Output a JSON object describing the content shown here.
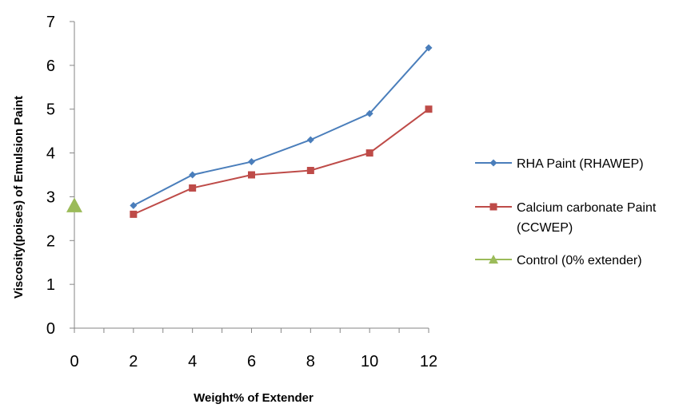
{
  "chart_data": {
    "type": "line",
    "title": "",
    "xlabel": "Weight% of Extender",
    "ylabel": "Viscosity(poises) of Emulsion Paint",
    "xlim": [
      0,
      12
    ],
    "ylim": [
      0,
      7
    ],
    "x_ticks": [
      "0",
      "2",
      "4",
      "6",
      "8",
      "10",
      "12"
    ],
    "y_ticks": [
      "0",
      "1",
      "2",
      "3",
      "4",
      "5",
      "6",
      "7"
    ],
    "grid": false,
    "legend_position": "right",
    "series": [
      {
        "name": "RHA Paint (RHAWEP)",
        "legend_lines": [
          "RHA Paint (RHAWEP)"
        ],
        "color": "#4A7EBB",
        "marker": "diamond",
        "x": [
          2,
          4,
          6,
          8,
          10,
          12
        ],
        "y": [
          2.8,
          3.5,
          3.8,
          4.3,
          4.9,
          6.4
        ]
      },
      {
        "name": "Calcium carbonate Paint (CCWEP)",
        "legend_lines": [
          "Calcium carbonate Paint",
          "(CCWEP)"
        ],
        "color": "#BE4B48",
        "marker": "square",
        "x": [
          2,
          4,
          6,
          8,
          10,
          12
        ],
        "y": [
          2.6,
          3.2,
          3.5,
          3.6,
          4.0,
          5.0
        ]
      },
      {
        "name": "Control (0% extender)",
        "legend_lines": [
          "Control (0% extender)"
        ],
        "color": "#9BBB59",
        "marker": "triangle",
        "x": [
          0
        ],
        "y": [
          2.8
        ]
      }
    ]
  }
}
